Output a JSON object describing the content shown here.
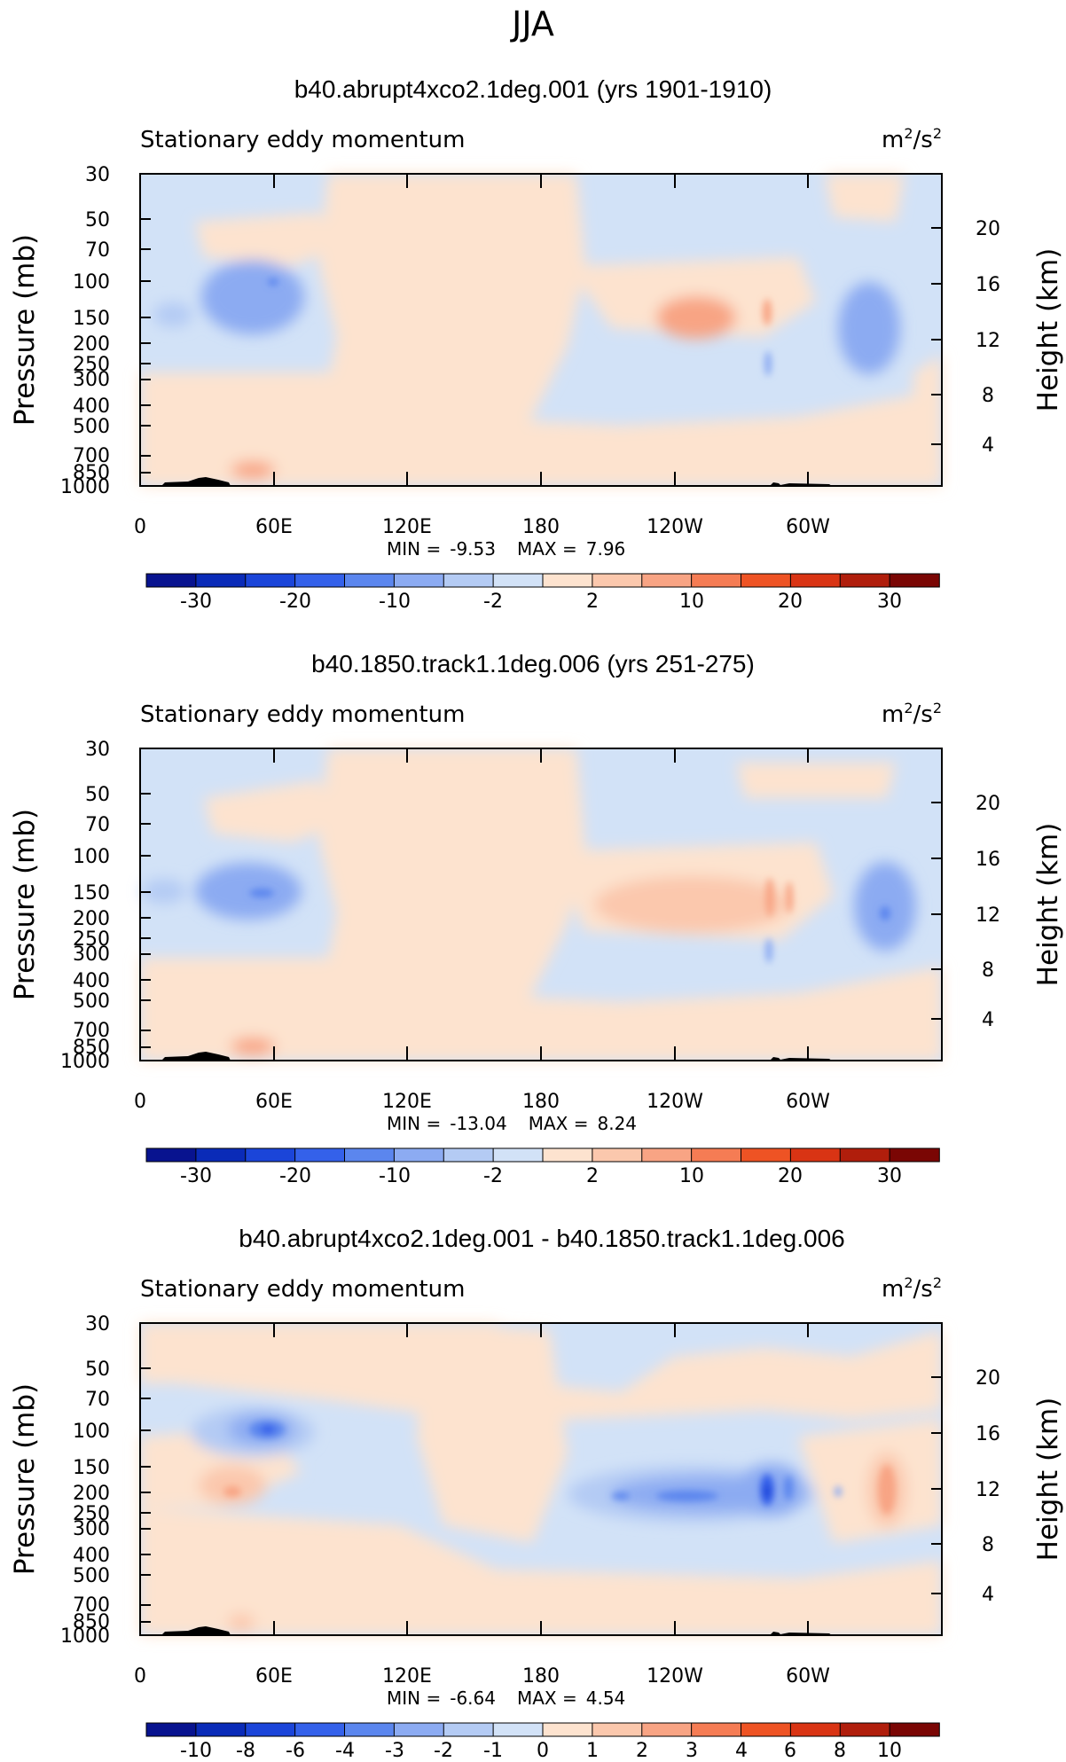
{
  "figure": {
    "season": "JJA"
  },
  "colors": {
    "blue_scale": [
      "#08138f",
      "#0a2bb8",
      "#1b45d9",
      "#3461ea",
      "#5b86ee",
      "#8cabf2",
      "#b4cbf4",
      "#d2e2f7"
    ],
    "red_scale": [
      "#fde3cf",
      "#fbc8ad",
      "#f8a484",
      "#f57c54",
      "#ee5324",
      "#d93414",
      "#b01e0c",
      "#7a0604"
    ],
    "terrain": "#000000"
  },
  "chart_data": [
    {
      "type": "contour",
      "title": "b40.abrupt4xco2.1deg.001 (yrs 1901-1910)",
      "subtitle_left": "Stationary eddy momentum",
      "units": "m²/s²",
      "units_base": "m",
      "units_exp1": "2",
      "units_mid": "/s",
      "units_exp2": "2",
      "ylabel": "Pressure (mb)",
      "ylabel_right": "Height (km)",
      "x_ticks": [
        "0",
        "60E",
        "120E",
        "180",
        "120W",
        "60W"
      ],
      "y_ticks": [
        "30",
        "50",
        "70",
        "100",
        "150",
        "200",
        "250",
        "300",
        "400",
        "500",
        "700",
        "850",
        "1000"
      ],
      "y_ticks_right": [
        "20",
        "16",
        "12",
        "8",
        "4"
      ],
      "stats": {
        "min_label": "MIN =",
        "min": "-9.53",
        "max_label": "MAX =",
        "max": "7.96"
      },
      "colorbar_labels": [
        "-30",
        "-20",
        "-10",
        "-2",
        "2",
        "10",
        "20",
        "30"
      ],
      "features": [
        {
          "lon": 50,
          "p": 115,
          "level": -2
        },
        {
          "lon": 16,
          "p": 150,
          "level": -1
        },
        {
          "lon": 232,
          "p": 160,
          "level": 1
        },
        {
          "lon": 325,
          "p": 165,
          "level": -1
        },
        {
          "lon": 48,
          "p": 880,
          "level": 2
        }
      ]
    },
    {
      "type": "contour",
      "title": "b40.1850.track1.1deg.006 (yrs 251-275)",
      "subtitle_left": "Stationary eddy momentum",
      "units": "m²/s²",
      "units_base": "m",
      "units_exp1": "2",
      "units_mid": "/s",
      "units_exp2": "2",
      "ylabel": "Pressure (mb)",
      "ylabel_right": "Height (km)",
      "x_ticks": [
        "0",
        "60E",
        "120E",
        "180",
        "120W",
        "60W"
      ],
      "y_ticks": [
        "30",
        "50",
        "70",
        "100",
        "150",
        "200",
        "250",
        "300",
        "400",
        "500",
        "700",
        "850",
        "1000"
      ],
      "y_ticks_right": [
        "20",
        "16",
        "12",
        "8",
        "4"
      ],
      "stats": {
        "min_label": "MIN =",
        "min": "-13.04",
        "max_label": "MAX =",
        "max": "8.24"
      },
      "colorbar_labels": [
        "-30",
        "-20",
        "-10",
        "-2",
        "2",
        "10",
        "20",
        "30"
      ],
      "features": [
        {
          "lon": 55,
          "p": 150,
          "level": -2
        },
        {
          "lon": 12,
          "p": 150,
          "level": -1
        },
        {
          "lon": 232,
          "p": 180,
          "level": 1
        },
        {
          "lon": 335,
          "p": 180,
          "level": -2
        },
        {
          "lon": 48,
          "p": 880,
          "level": 2
        }
      ]
    },
    {
      "type": "contour",
      "title": "b40.abrupt4xco2.1deg.001 - b40.1850.track1.1deg.006",
      "subtitle_left": "Stationary eddy momentum",
      "units": "m²/s²",
      "units_base": "m",
      "units_exp1": "2",
      "units_mid": "/s",
      "units_exp2": "2",
      "ylabel": "Pressure (mb)",
      "ylabel_right": "Height (km)",
      "x_ticks": [
        "0",
        "60E",
        "120E",
        "180",
        "120W",
        "60W"
      ],
      "y_ticks": [
        "30",
        "50",
        "70",
        "100",
        "150",
        "200",
        "250",
        "300",
        "400",
        "500",
        "700",
        "850",
        "1000"
      ],
      "y_ticks_right": [
        "20",
        "16",
        "12",
        "8",
        "4"
      ],
      "stats": {
        "min_label": "MIN =",
        "min": "-6.64",
        "max_label": "MAX =",
        "max": "4.54"
      },
      "colorbar_labels": [
        "-10",
        "-8",
        "-6",
        "-4",
        "-3",
        "-2",
        "-1",
        "0",
        "1",
        "2",
        "3",
        "4",
        "6",
        "8",
        "10"
      ],
      "features": [
        {
          "lon": 58,
          "p": 100,
          "level": -4
        },
        {
          "lon": 42,
          "p": 200,
          "level": 1
        },
        {
          "lon": 230,
          "p": 200,
          "level": -2
        },
        {
          "lon": 285,
          "p": 200,
          "level": -5
        },
        {
          "lon": 335,
          "p": 230,
          "level": 1
        }
      ]
    }
  ]
}
